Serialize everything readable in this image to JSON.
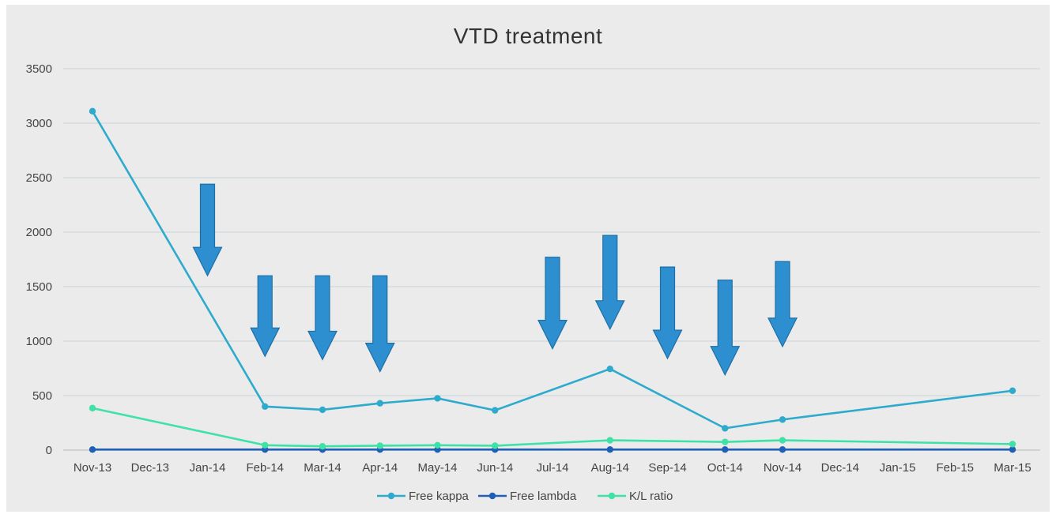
{
  "chart_data": {
    "type": "line",
    "title": "VTD treatment",
    "xlabel": "",
    "ylabel": "",
    "categories": [
      "Nov-13",
      "Dec-13",
      "Jan-14",
      "Feb-14",
      "Mar-14",
      "Apr-14",
      "May-14",
      "Jun-14",
      "Jul-14",
      "Aug-14",
      "Sep-14",
      "Oct-14",
      "Nov-14",
      "Dec-14",
      "Jan-15",
      "Feb-15",
      "Mar-15"
    ],
    "yticks": [
      "0",
      "500",
      "1000",
      "1500",
      "2000",
      "2500",
      "3000",
      "3500"
    ],
    "ylim": [
      0,
      3500
    ],
    "grid": true,
    "legend_position": "bottom",
    "series": [
      {
        "name": "Free kappa",
        "color": "#2eaacd",
        "values": [
          3110,
          null,
          null,
          400,
          370,
          430,
          475,
          365,
          null,
          745,
          null,
          200,
          280,
          null,
          null,
          null,
          545
        ]
      },
      {
        "name": "Free lambda",
        "color": "#1f5fb5",
        "values": [
          5,
          null,
          null,
          5,
          5,
          5,
          5,
          5,
          null,
          5,
          null,
          5,
          5,
          null,
          null,
          null,
          5
        ]
      },
      {
        "name": "K/L ratio",
        "color": "#3ee2a6",
        "values": [
          385,
          null,
          null,
          45,
          35,
          40,
          45,
          40,
          null,
          90,
          null,
          75,
          90,
          null,
          null,
          null,
          55
        ]
      }
    ],
    "annotations": [
      {
        "type": "down-arrow",
        "x": "Jan-14",
        "from": 2440,
        "to": 1600,
        "color": "#2d8fd0"
      },
      {
        "type": "down-arrow",
        "x": "Feb-14",
        "from": 1600,
        "to": 860,
        "color": "#2d8fd0"
      },
      {
        "type": "down-arrow",
        "x": "Mar-14",
        "from": 1600,
        "to": 830,
        "color": "#2d8fd0"
      },
      {
        "type": "down-arrow",
        "x": "Apr-14",
        "from": 1600,
        "to": 720,
        "color": "#2d8fd0"
      },
      {
        "type": "down-arrow",
        "x": "Jul-14",
        "from": 1770,
        "to": 930,
        "color": "#2d8fd0"
      },
      {
        "type": "down-arrow",
        "x": "Aug-14",
        "from": 1970,
        "to": 1110,
        "color": "#2d8fd0"
      },
      {
        "type": "down-arrow",
        "x": "Sep-14",
        "from": 1680,
        "to": 840,
        "color": "#2d8fd0"
      },
      {
        "type": "down-arrow",
        "x": "Oct-14",
        "from": 1560,
        "to": 690,
        "color": "#2d8fd0"
      },
      {
        "type": "down-arrow",
        "x": "Nov-14",
        "from": 1730,
        "to": 950,
        "color": "#2d8fd0"
      }
    ]
  }
}
